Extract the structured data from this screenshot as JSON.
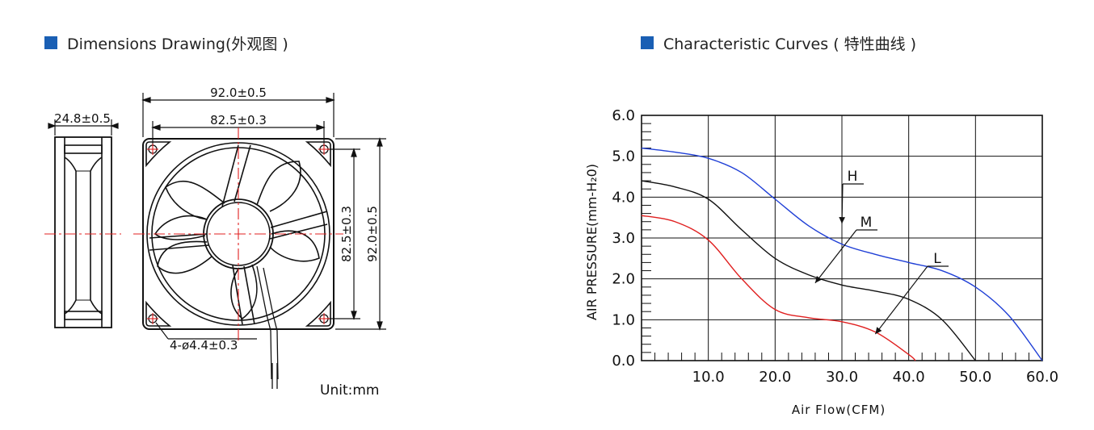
{
  "header_left": {
    "title": "Dimensions Drawing(外观图 )"
  },
  "header_right": {
    "title": "Characteristic Curves ( 特性曲线 )"
  },
  "colors": {
    "accent_square": "#1a5fb4",
    "curve_H": "#1f3fd6",
    "curve_M": "#111111",
    "curve_L": "#e02020",
    "center_line": "#e02020"
  },
  "drawing": {
    "dims": {
      "width_outer": "92.0±0.5",
      "width_hole": "82.5±0.3",
      "thickness": "24.8±0.5",
      "height_hole": "82.5±0.3",
      "height_outer": "92.0±0.5",
      "holes": "4-ø4.4±0.3"
    },
    "unit": "Unit:mm"
  },
  "chart_data": {
    "type": "line",
    "xlabel": "Air Flow(CFM)",
    "ylabel": "AIR PRESSURE(mm-H₂0)",
    "xlim": [
      0,
      60
    ],
    "ylim": [
      0,
      6
    ],
    "x_ticks": [
      "10.0",
      "20.0",
      "30.0",
      "40.0",
      "50.0",
      "60.0"
    ],
    "y_ticks": [
      "0.0",
      "1.0",
      "2.0",
      "3.0",
      "4.0",
      "5.0",
      "6.0"
    ],
    "grid": true,
    "series": [
      {
        "name": "H",
        "x": [
          0,
          5,
          10,
          15,
          20,
          25,
          30,
          35,
          40,
          45,
          50,
          55,
          60
        ],
        "y": [
          5.2,
          5.1,
          4.95,
          4.6,
          3.95,
          3.3,
          2.85,
          2.6,
          2.4,
          2.2,
          1.8,
          1.1,
          0.0
        ]
      },
      {
        "name": "M",
        "x": [
          0,
          5,
          10,
          15,
          20,
          25,
          30,
          35,
          40,
          45,
          50
        ],
        "y": [
          4.4,
          4.25,
          3.95,
          3.2,
          2.5,
          2.1,
          1.85,
          1.7,
          1.5,
          1.0,
          0.0
        ]
      },
      {
        "name": "L",
        "x": [
          0,
          5,
          10,
          15,
          20,
          25,
          30,
          35,
          40,
          41
        ],
        "y": [
          3.55,
          3.4,
          2.95,
          2.0,
          1.25,
          1.05,
          0.95,
          0.7,
          0.15,
          0.0
        ]
      }
    ]
  }
}
